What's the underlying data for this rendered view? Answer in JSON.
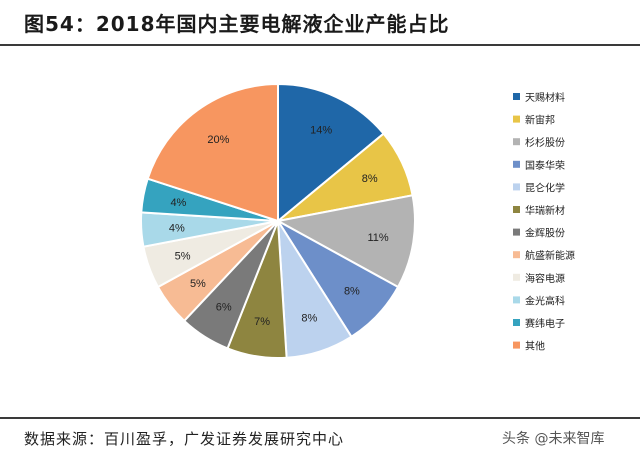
{
  "figure_title": "图54：2018年国内主要电解液企业产能占比",
  "source": "数据来源：百川盈孚，广发证券发展研究中心",
  "watermark": "头条 @未来智库",
  "chart_data": {
    "type": "pie",
    "title": "",
    "legend_position": "right",
    "start": "12 o'clock, clockwise",
    "slices": [
      {
        "label": "天赐材料",
        "value": 14,
        "value_label": "14%",
        "color": "#1f67a8"
      },
      {
        "label": "新宙邦",
        "value": 8,
        "value_label": "8%",
        "color": "#e8c547"
      },
      {
        "label": "杉杉股份",
        "value": 11,
        "value_label": "11%",
        "color": "#b3b3b3"
      },
      {
        "label": "国泰华荣",
        "value": 8,
        "value_label": "8%",
        "color": "#6d8fc9"
      },
      {
        "label": "昆仑化学",
        "value": 8,
        "value_label": "8%",
        "color": "#bcd2ee"
      },
      {
        "label": "华瑞新材",
        "value": 7,
        "value_label": "7%",
        "color": "#8e8540"
      },
      {
        "label": "金辉股份",
        "value": 6,
        "value_label": "6%",
        "color": "#7a7a7a"
      },
      {
        "label": "航盛新能源",
        "value": 5,
        "value_label": "5%",
        "color": "#f7bb94"
      },
      {
        "label": "海容电源",
        "value": 5,
        "value_label": "5%",
        "color": "#efebe2"
      },
      {
        "label": "金光高科",
        "value": 4,
        "value_label": "4%",
        "color": "#a9d9e9"
      },
      {
        "label": "赛纬电子",
        "value": 4,
        "value_label": "4%",
        "color": "#35a3bf"
      },
      {
        "label": "其他",
        "value": 20,
        "value_label": "20%",
        "color": "#f79660"
      }
    ]
  }
}
